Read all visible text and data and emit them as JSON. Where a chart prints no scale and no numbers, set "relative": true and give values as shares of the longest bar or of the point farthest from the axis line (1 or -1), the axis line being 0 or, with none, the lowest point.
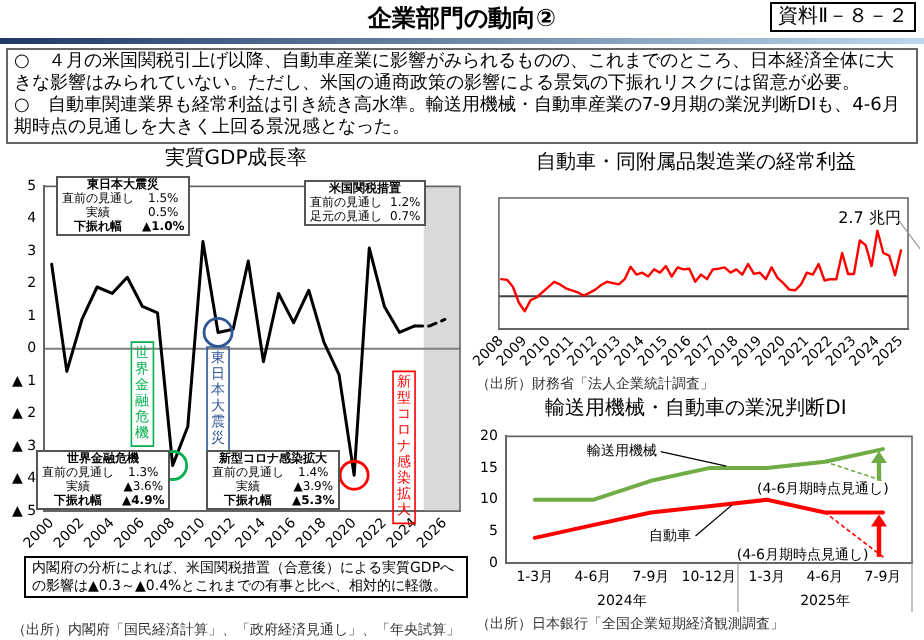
{
  "chart_data": [
    {
      "type": "other",
      "title": "企業部門の動向②",
      "annotations": [
        "資料Ⅱ－８－２",
        "○　４月の米国関税引上げ以降、自動車産業に影響がみられるものの、これまでのところ、日本経済全体に大きな影響はみられていない。ただし、米国の通商政策の影響による景気の下振れリスクには留意が必要。",
        "○　自動車関連業界も経常利益は引き続き高水準。輸送用機械・自動車産業の7-9月期の業況判断DIも、4-6月期時点の見通しを大きく上回る景況感となった。"
      ]
    },
    {
      "type": "line",
      "title": "実質GDP成長率",
      "marker": "none",
      "grid": false,
      "x": [
        2000,
        2001,
        2002,
        2003,
        2004,
        2005,
        2006,
        2007,
        2008,
        2009,
        2010,
        2011,
        2012,
        2013,
        2014,
        2015,
        2016,
        2017,
        2018,
        2019,
        2020,
        2021,
        2022,
        2023,
        2024
      ],
      "series": [
        {
          "color": "#000000",
          "line_style": "solid",
          "values": [
            2.6,
            -0.7,
            0.9,
            1.9,
            1.7,
            2.2,
            1.3,
            1.1,
            -3.6,
            -2.4,
            3.3,
            0.5,
            0.6,
            2.7,
            -0.4,
            1.7,
            0.8,
            1.8,
            0.2,
            -0.8,
            -3.9,
            3.1,
            1.3,
            0.5,
            0.7
          ]
        },
        {
          "color": "#000000",
          "line_style": "dashed",
          "x": [
            2024,
            2025,
            2026
          ],
          "values": [
            0.7,
            0.7,
            0.9
          ]
        }
      ],
      "xlim": [
        1999.5,
        2027
      ],
      "xticks": [
        2000,
        2002,
        2004,
        2006,
        2008,
        2010,
        2012,
        2014,
        2016,
        2018,
        2020,
        2022,
        2024,
        2026
      ],
      "ylim": [
        -5,
        5
      ],
      "yticks": [
        5,
        4,
        3,
        2,
        1,
        0,
        {
          "value": -1,
          "label": "▲ 1"
        },
        {
          "value": -2,
          "label": "▲ 2"
        },
        {
          "value": -3,
          "label": "▲ 3"
        },
        {
          "value": -4,
          "label": "▲ 4"
        },
        {
          "value": -5,
          "label": "▲ 5"
        }
      ],
      "ref_lines": [
        {
          "axis": "y",
          "value": 0,
          "color": "#808080"
        }
      ],
      "bands": [
        {
          "axis": "x",
          "from": 2024.6,
          "to": 2027,
          "color": "#d9d9d9"
        }
      ],
      "annotations": [
        {
          "text": "世界金融危機",
          "x": 2008,
          "y": -3.6
        },
        {
          "text": "東日本大震災",
          "x": 2011,
          "y": 0.5
        },
        {
          "text": "新型コロナ感染拡大",
          "x": 2020,
          "y": -3.9
        },
        "東日本大震災",
        "直前の見通し　1.5%",
        "実績　0.5%",
        "下振れ幅　▲1.0%",
        "米国関税措置",
        "直前の見通し　1.2%",
        "足元の見通し　0.7%",
        "世界金融危機",
        "直前の見通し　1.3%",
        "実績　▲3.6%",
        "下振れ幅　▲4.9%",
        "新型コロナ感染拡大",
        "直前の見通し　1.4%",
        "実績　▲3.9%",
        "下振れ幅　▲5.3%",
        "内閣府の分析によれば、米国関税措置（合意後）による実質GDPへの影響は▲0.3～▲0.4%とこれまでの有事と比べ、相対的に軽微。",
        "（出所）内閣府「国民経済計算」、「政府経済見通し」、「年央試算」"
      ]
    },
    {
      "type": "line",
      "title": "自動車・同附属品製造業の経常利益",
      "relative": true,
      "marker": "none",
      "grid": false,
      "x": [
        2008,
        2008.25,
        2008.5,
        2008.75,
        2009,
        2009.25,
        2009.5,
        2009.75,
        2010,
        2010.25,
        2010.5,
        2010.75,
        2011,
        2011.25,
        2011.5,
        2011.75,
        2012,
        2012.25,
        2012.5,
        2012.75,
        2013,
        2013.25,
        2013.5,
        2013.75,
        2014,
        2014.25,
        2014.5,
        2014.75,
        2015,
        2015.25,
        2015.5,
        2015.75,
        2016,
        2016.25,
        2016.5,
        2016.75,
        2017,
        2017.25,
        2017.5,
        2017.75,
        2018,
        2018.25,
        2018.5,
        2018.75,
        2019,
        2019.25,
        2019.5,
        2019.75,
        2020,
        2020.25,
        2020.5,
        2020.75,
        2021,
        2021.25,
        2021.5,
        2021.75,
        2022,
        2022.25,
        2022.5,
        2022.75,
        2023,
        2023.25,
        2023.5,
        2023.75,
        2024,
        2024.25,
        2024.5,
        2024.75,
        2025
      ],
      "series": [
        {
          "color": "#ff0000",
          "line_style": "solid",
          "values": [
            0.26,
            0.25,
            0.14,
            -0.1,
            -0.23,
            -0.06,
            -0.02,
            0.06,
            0.14,
            0.22,
            0.18,
            0.12,
            0.09,
            0.06,
            0.01,
            0.05,
            0.1,
            0.17,
            0.22,
            0.2,
            0.18,
            0.26,
            0.45,
            0.33,
            0.36,
            0.3,
            0.41,
            0.36,
            0.46,
            0.3,
            0.44,
            0.41,
            0.42,
            0.22,
            0.33,
            0.26,
            0.41,
            0.42,
            0.44,
            0.36,
            0.41,
            0.33,
            0.49,
            0.34,
            0.36,
            0.26,
            0.44,
            0.28,
            0.2,
            0.1,
            0.09,
            0.18,
            0.36,
            0.33,
            0.49,
            0.24,
            0.26,
            0.26,
            0.66,
            0.34,
            0.34,
            0.85,
            0.78,
            0.46,
            1,
            0.66,
            0.62,
            0.32,
            0.7
          ]
        }
      ],
      "xlim": [
        2007.9,
        2025.3
      ],
      "xticks": [
        2008,
        2009,
        2010,
        2011,
        2012,
        2013,
        2014,
        2015,
        2016,
        2017,
        2018,
        2019,
        2020,
        2021,
        2022,
        2023,
        2024,
        2025
      ],
      "ref_lines": [
        {
          "axis": "y",
          "value": 0,
          "color": "#404040"
        }
      ],
      "annotations": [
        {
          "text": "2.7 兆円",
          "x": 2024,
          "y": 1
        },
        "（出所）財務省「法人企業統計調査」"
      ]
    },
    {
      "type": "line",
      "title": "輸送用機械・自動車の業況判断DI",
      "marker": "none",
      "grid": false,
      "categories": [
        "1-3月",
        "4-6月",
        "7-9月",
        "10-12月",
        "1-3月",
        "4-6月",
        "7-9月"
      ],
      "series": [
        {
          "name": "輸送用機械",
          "color": "#70ad47",
          "line_style": "solid",
          "values": [
            10,
            10,
            13,
            15,
            15,
            16,
            18
          ]
        },
        {
          "name": "自動車",
          "color": "#ff0000",
          "line_style": "solid",
          "values": [
            4,
            6,
            8,
            9,
            10,
            8,
            8
          ]
        },
        {
          "name": "(4-6月期時点見通し)",
          "color": "#70ad47",
          "line_style": "dotted",
          "values": [
            null,
            null,
            null,
            null,
            null,
            16,
            13
          ]
        },
        {
          "name": "(4-6月期時点見通し)",
          "color": "#ff0000",
          "line_style": "dotted",
          "values": [
            null,
            null,
            null,
            null,
            null,
            8,
            1
          ]
        }
      ],
      "ylim": [
        0,
        20
      ],
      "yticks": [
        0,
        5,
        10,
        15,
        20
      ],
      "annotations": [
        "2024年",
        "2025年",
        "（出所）日本銀行「全国企業短期経済観測調査」"
      ]
    }
  ]
}
